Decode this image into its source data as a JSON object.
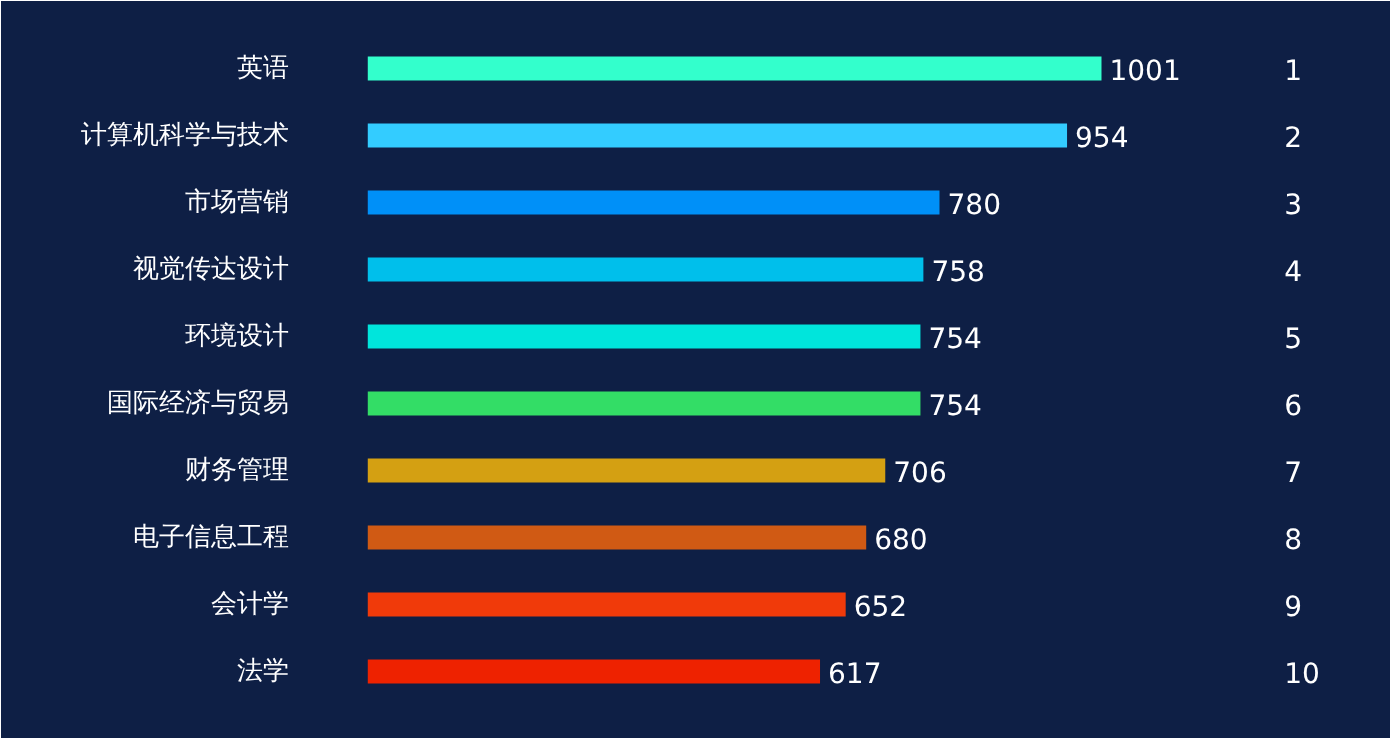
{
  "chart_data": {
    "type": "bar",
    "orientation": "horizontal",
    "data_labels": true,
    "tick_labels": "y",
    "categories": [
      "英语",
      "计算机科学与技术",
      "市场营销",
      "视觉传达设计",
      "环境设计",
      "国际经济与贸易",
      "财务管理",
      "电子信息工程",
      "会计学",
      "法学"
    ],
    "values": [
      1001,
      954,
      780,
      758,
      754,
      754,
      706,
      680,
      652,
      617
    ],
    "colors": [
      "#33ffcc",
      "#33ccff",
      "#0090f8",
      "#00bfeb",
      "#00e5dc",
      "#33dd66",
      "#d4a012",
      "#d05a14",
      "#f03a0a",
      "#ee2200"
    ],
    "annotations": [
      "1",
      "2",
      "3",
      "4",
      "5",
      "6",
      "7",
      "8",
      "9",
      "10"
    ]
  }
}
